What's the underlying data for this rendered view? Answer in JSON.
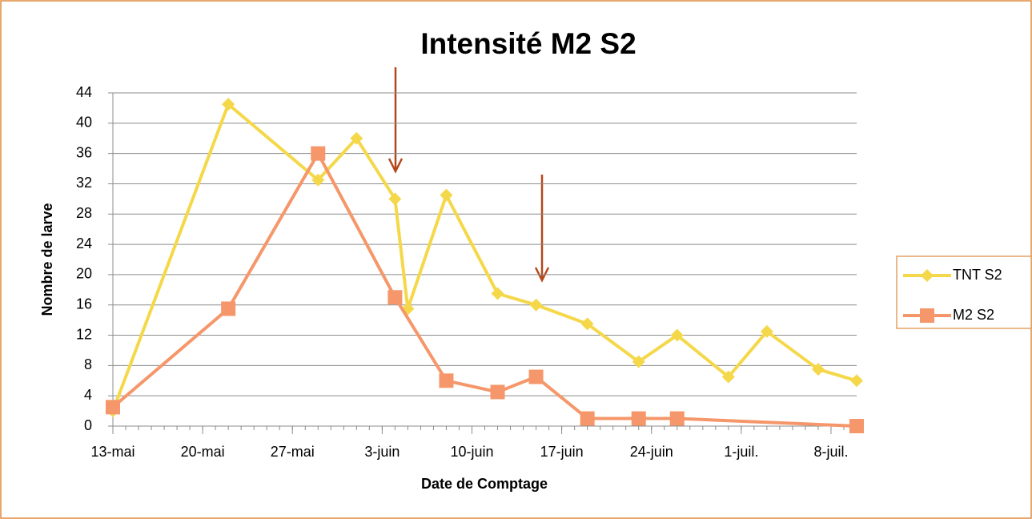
{
  "chart_data": {
    "type": "line",
    "title": "Intensité M2 S2",
    "xlabel": "Date de Comptage",
    "ylabel": "Nombre de larve",
    "series": [
      {
        "name": "TNT S2",
        "color": "#f5d84a",
        "marker": "diamond",
        "x": [
          "05-13",
          "05-22",
          "05-29",
          "06-01",
          "06-04",
          "06-05",
          "06-08",
          "06-12",
          "06-15",
          "06-19",
          "06-23",
          "06-26",
          "06-30",
          "07-03",
          "07-07",
          "07-10"
        ],
        "values": [
          2,
          42.5,
          32.5,
          38,
          30,
          15.5,
          30.5,
          17.5,
          16,
          13.5,
          8.5,
          12,
          6.5,
          12.5,
          7.5,
          6
        ]
      },
      {
        "name": "M2 S2",
        "color": "#f5976a",
        "marker": "square",
        "x": [
          "05-13",
          "05-22",
          "05-29",
          "06-04",
          "06-08",
          "06-12",
          "06-15",
          "06-19",
          "06-23",
          "06-26",
          "07-10"
        ],
        "values": [
          2.5,
          15.5,
          36,
          17,
          6,
          4.5,
          6.5,
          1,
          1,
          1,
          0
        ]
      }
    ],
    "xlim": [
      "05-13",
      "07-10"
    ],
    "xticks": [
      {
        "value": "05-13",
        "label": "13-mai"
      },
      {
        "value": "05-20",
        "label": "20-mai"
      },
      {
        "value": "05-27",
        "label": "27-mai"
      },
      {
        "value": "06-03",
        "label": "3-juin"
      },
      {
        "value": "06-10",
        "label": "10-juin"
      },
      {
        "value": "06-17",
        "label": "17-juin"
      },
      {
        "value": "06-24",
        "label": "24-juin"
      },
      {
        "value": "07-01",
        "label": "1-juil."
      },
      {
        "value": "07-08",
        "label": "8-juil."
      }
    ],
    "ylim": [
      0,
      44
    ],
    "yticks": [
      0,
      4,
      8,
      12,
      16,
      20,
      24,
      28,
      32,
      36,
      40,
      44
    ],
    "grid": true,
    "legend": "right"
  }
}
